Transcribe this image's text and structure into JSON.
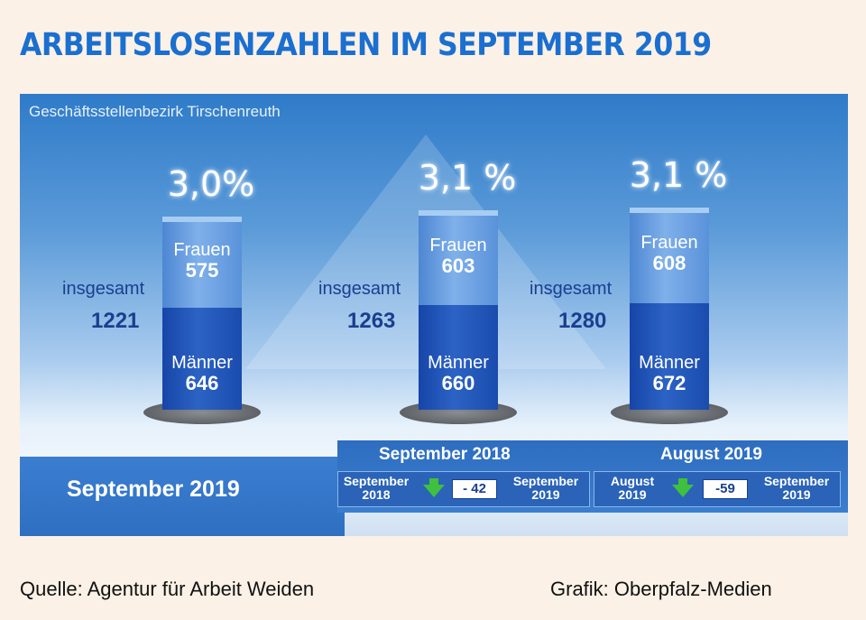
{
  "title": "ARBEITSLOSENZAHLEN IM SEPTEMBER 2019",
  "subtitle": "Geschäftsstellenbezirk Tirschenreuth",
  "labels": {
    "women": "Frauen",
    "men": "Männer",
    "total": "insgesamt"
  },
  "chart_data": {
    "type": "bar",
    "stacked": true,
    "title": "ARBEITSLOSENZAHLEN IM SEPTEMBER 2019",
    "subtitle": "Geschäftsstellenbezirk Tirschenreuth",
    "series": [
      {
        "name": "Männer",
        "values": [
          646,
          660,
          672
        ]
      },
      {
        "name": "Frauen",
        "values": [
          575,
          603,
          608
        ]
      }
    ],
    "totals": [
      1221,
      1263,
      1280
    ],
    "rates": [
      "3,0%",
      "3,1 %",
      "3,1 %"
    ],
    "ylim": [
      0,
      1400
    ]
  },
  "columns": [
    {
      "rate": "3,0%",
      "women": "575",
      "men": "646",
      "total": "1221"
    },
    {
      "rate": "3,1 %",
      "women": "603",
      "men": "660",
      "total": "1263"
    },
    {
      "rate": "3,1 %",
      "women": "608",
      "men": "672",
      "total": "1280"
    }
  ],
  "current_month": "September 2019",
  "comparisons": [
    {
      "title": "September 2018",
      "from": "September 2018",
      "diff": "- 42",
      "to": "September 2019"
    },
    {
      "title": "August 2019",
      "from": "August 2019",
      "diff": "-59",
      "to": "September 2019"
    }
  ],
  "footer": {
    "source": "Quelle: Agentur für Arbeit Weiden",
    "credit": "Grafik: Oberpfalz-Medien"
  },
  "colors": {
    "title": "#1a6fd0",
    "men": "#1f55b8",
    "women": "#6aa0e2",
    "arrow": "#3fc03f"
  }
}
